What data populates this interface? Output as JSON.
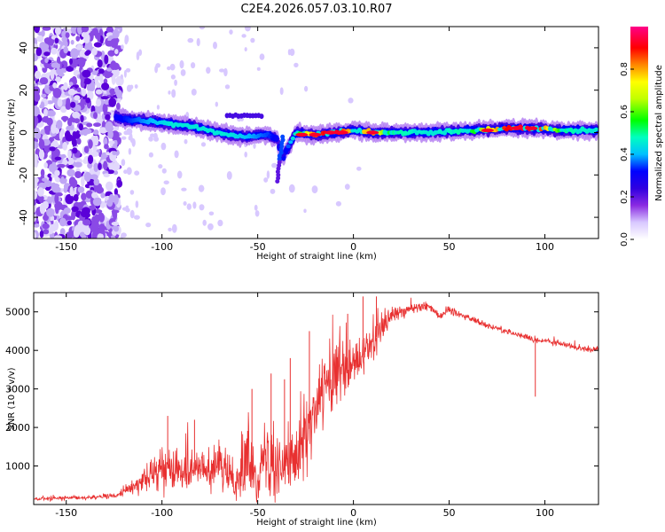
{
  "title": "C2E4.2026.057.03.10.R07",
  "chart_data": [
    {
      "type": "heatmap",
      "name": "spectrogram",
      "xlabel": "Height of straight line (km)",
      "ylabel": "Frequency (Hz)",
      "xlim": [
        -167,
        128
      ],
      "ylim": [
        -50,
        50
      ],
      "x_ticks": [
        -150,
        -100,
        -50,
        0,
        50,
        100
      ],
      "y_ticks": [
        -40,
        -20,
        0,
        20,
        40
      ],
      "colorbar": {
        "label": "Normalized spectral amplitude",
        "range": [
          0,
          1
        ],
        "ticks": [
          0.0,
          0.2,
          0.4,
          0.6,
          0.8
        ],
        "colormap": [
          "#ffffff",
          "#d8c8ff",
          "#8a2be2",
          "#5a00d8",
          "#0000ff",
          "#00ffff",
          "#00ff00",
          "#ffff00",
          "#ff8800",
          "#ff0000",
          "#ff0088"
        ]
      },
      "ridge": {
        "x": [
          -124,
          -115,
          -105,
          -95,
          -85,
          -75,
          -65,
          -55,
          -45,
          -40,
          -37,
          -30,
          -20,
          -10,
          0,
          10,
          20,
          40,
          60,
          80,
          95,
          110,
          128
        ],
        "y": [
          7,
          6,
          5,
          4,
          3,
          1,
          -1,
          -2,
          -1,
          -3,
          -12,
          0,
          -1,
          0,
          1,
          0,
          0,
          0,
          1,
          2,
          2,
          1,
          1
        ],
        "amplitude": [
          0.3,
          0.35,
          0.4,
          0.45,
          0.45,
          0.45,
          0.45,
          0.4,
          0.35,
          0.3,
          0.25,
          0.5,
          0.85,
          0.95,
          0.75,
          0.8,
          0.5,
          0.45,
          0.5,
          0.9,
          0.95,
          0.5,
          0.45
        ]
      },
      "noise_region": {
        "x_range": [
          -167,
          -122
        ],
        "y_range": [
          -50,
          50
        ],
        "amplitude": 0.15
      }
    },
    {
      "type": "line",
      "name": "snr",
      "xlabel": "Height of straight line (km)",
      "ylabel": "SNR (10 * v/v)",
      "xlim": [
        -167,
        128
      ],
      "ylim": [
        0,
        5500
      ],
      "x_ticks": [
        -150,
        -100,
        -50,
        0,
        50,
        100
      ],
      "y_ticks": [
        1000,
        2000,
        3000,
        4000,
        5000
      ],
      "color": "#e83030",
      "envelope": {
        "x": [
          -167,
          -140,
          -125,
          -115,
          -105,
          -100,
          -90,
          -80,
          -70,
          -60,
          -55,
          -50,
          -45,
          -40,
          -35,
          -30,
          -25,
          -20,
          -15,
          -10,
          -5,
          0,
          10,
          20,
          30,
          40,
          45,
          50,
          60,
          70,
          80,
          90,
          95,
          100,
          110,
          120,
          128
        ],
        "mean": [
          150,
          180,
          220,
          450,
          800,
          900,
          1000,
          900,
          950,
          600,
          1300,
          800,
          1300,
          1200,
          800,
          1500,
          1800,
          2200,
          3000,
          3300,
          3400,
          3550,
          4200,
          4900,
          5100,
          5150,
          4900,
          5050,
          4850,
          4650,
          4500,
          4350,
          4250,
          4250,
          4150,
          4050,
          4000
        ],
        "spread": [
          80,
          80,
          90,
          250,
          600,
          700,
          750,
          700,
          800,
          700,
          1400,
          900,
          1500,
          1500,
          900,
          1500,
          1500,
          1400,
          1500,
          1400,
          1300,
          1100,
          700,
          350,
          200,
          150,
          150,
          150,
          120,
          110,
          110,
          110,
          120,
          110,
          110,
          110,
          110
        ]
      },
      "spikes": [
        {
          "x": -97,
          "y": 2300
        },
        {
          "x": -83,
          "y": 2200
        },
        {
          "x": -53,
          "y": 3000
        },
        {
          "x": -43,
          "y": 3400
        },
        {
          "x": -36,
          "y": 3250
        },
        {
          "x": -33,
          "y": 3800
        },
        {
          "x": -23,
          "y": 4500
        },
        {
          "x": -3,
          "y": 4950
        },
        {
          "x": 5,
          "y": 5400
        },
        {
          "x": 12,
          "y": 5400
        },
        {
          "x": 95,
          "y": 2800
        }
      ]
    }
  ]
}
